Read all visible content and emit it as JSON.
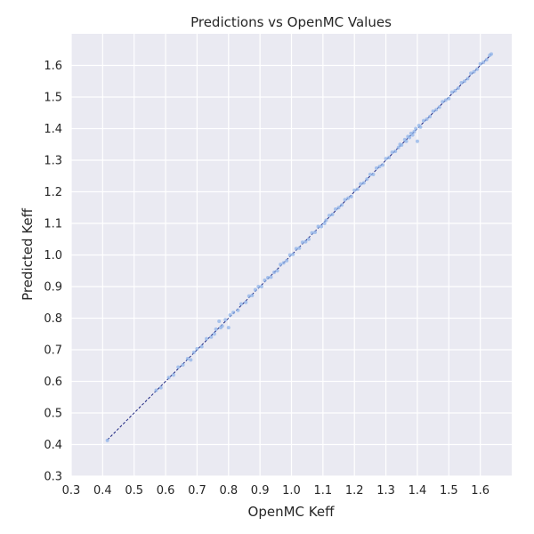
{
  "chart_data": {
    "type": "scatter",
    "title": "Predictions vs OpenMC Values",
    "xlabel": "OpenMC Keff",
    "ylabel": "Predicted Keff",
    "xlim": [
      0.3,
      1.7
    ],
    "ylim": [
      0.3,
      1.7
    ],
    "x_ticks": [
      "0.3",
      "0.4",
      "0.5",
      "0.6",
      "0.7",
      "0.8",
      "0.9",
      "1.0",
      "1.1",
      "1.2",
      "1.3",
      "1.4",
      "1.5",
      "1.6"
    ],
    "y_ticks": [
      "0.3",
      "0.4",
      "0.5",
      "0.6",
      "0.7",
      "0.8",
      "0.9",
      "1.0",
      "1.1",
      "1.2",
      "1.3",
      "1.4",
      "1.5",
      "1.6"
    ],
    "grid": true,
    "reference_line": {
      "style": "dashed",
      "color": "#1a237e",
      "from": [
        0.415,
        0.415
      ],
      "to": [
        1.635,
        1.635
      ]
    },
    "series": [
      {
        "color": "#8fb3e8",
        "points": [
          [
            0.415,
            0.413
          ],
          [
            0.57,
            0.572
          ],
          [
            0.585,
            0.58
          ],
          [
            0.61,
            0.612
          ],
          [
            0.625,
            0.62
          ],
          [
            0.64,
            0.645
          ],
          [
            0.655,
            0.652
          ],
          [
            0.67,
            0.672
          ],
          [
            0.68,
            0.668
          ],
          [
            0.69,
            0.692
          ],
          [
            0.7,
            0.703
          ],
          [
            0.715,
            0.71
          ],
          [
            0.73,
            0.735
          ],
          [
            0.745,
            0.74
          ],
          [
            0.755,
            0.75
          ],
          [
            0.76,
            0.765
          ],
          [
            0.77,
            0.79
          ],
          [
            0.775,
            0.77
          ],
          [
            0.78,
            0.775
          ],
          [
            0.79,
            0.795
          ],
          [
            0.8,
            0.77
          ],
          [
            0.805,
            0.81
          ],
          [
            0.815,
            0.818
          ],
          [
            0.83,
            0.825
          ],
          [
            0.84,
            0.845
          ],
          [
            0.855,
            0.85
          ],
          [
            0.865,
            0.87
          ],
          [
            0.875,
            0.872
          ],
          [
            0.885,
            0.89
          ],
          [
            0.895,
            0.9
          ],
          [
            0.905,
            0.9
          ],
          [
            0.915,
            0.92
          ],
          [
            0.925,
            0.928
          ],
          [
            0.935,
            0.93
          ],
          [
            0.945,
            0.945
          ],
          [
            0.955,
            0.95
          ],
          [
            0.965,
            0.97
          ],
          [
            0.975,
            0.975
          ],
          [
            0.985,
            0.982
          ],
          [
            0.995,
            1.0
          ],
          [
            1.005,
            1.002
          ],
          [
            1.015,
            1.02
          ],
          [
            1.025,
            1.022
          ],
          [
            1.035,
            1.04
          ],
          [
            1.045,
            1.042
          ],
          [
            1.055,
            1.05
          ],
          [
            1.065,
            1.07
          ],
          [
            1.075,
            1.072
          ],
          [
            1.085,
            1.09
          ],
          [
            1.095,
            1.09
          ],
          [
            1.105,
            1.1
          ],
          [
            1.11,
            1.11
          ],
          [
            1.12,
            1.125
          ],
          [
            1.13,
            1.128
          ],
          [
            1.14,
            1.145
          ],
          [
            1.15,
            1.15
          ],
          [
            1.16,
            1.158
          ],
          [
            1.17,
            1.175
          ],
          [
            1.18,
            1.18
          ],
          [
            1.19,
            1.185
          ],
          [
            1.2,
            1.205
          ],
          [
            1.21,
            1.208
          ],
          [
            1.22,
            1.225
          ],
          [
            1.23,
            1.228
          ],
          [
            1.24,
            1.24
          ],
          [
            1.25,
            1.255
          ],
          [
            1.26,
            1.255
          ],
          [
            1.27,
            1.275
          ],
          [
            1.28,
            1.28
          ],
          [
            1.29,
            1.285
          ],
          [
            1.3,
            1.305
          ],
          [
            1.31,
            1.308
          ],
          [
            1.32,
            1.325
          ],
          [
            1.33,
            1.328
          ],
          [
            1.34,
            1.34
          ],
          [
            1.345,
            1.35
          ],
          [
            1.35,
            1.348
          ],
          [
            1.36,
            1.365
          ],
          [
            1.365,
            1.36
          ],
          [
            1.37,
            1.375
          ],
          [
            1.375,
            1.372
          ],
          [
            1.38,
            1.385
          ],
          [
            1.385,
            1.38
          ],
          [
            1.39,
            1.39
          ],
          [
            1.395,
            1.4
          ],
          [
            1.4,
            1.36
          ],
          [
            1.405,
            1.41
          ],
          [
            1.41,
            1.405
          ],
          [
            1.42,
            1.425
          ],
          [
            1.43,
            1.43
          ],
          [
            1.44,
            1.438
          ],
          [
            1.45,
            1.455
          ],
          [
            1.46,
            1.46
          ],
          [
            1.47,
            1.468
          ],
          [
            1.48,
            1.485
          ],
          [
            1.49,
            1.49
          ],
          [
            1.5,
            1.495
          ],
          [
            1.51,
            1.515
          ],
          [
            1.52,
            1.52
          ],
          [
            1.53,
            1.528
          ],
          [
            1.54,
            1.545
          ],
          [
            1.55,
            1.55
          ],
          [
            1.56,
            1.558
          ],
          [
            1.57,
            1.575
          ],
          [
            1.58,
            1.58
          ],
          [
            1.59,
            1.588
          ],
          [
            1.6,
            1.605
          ],
          [
            1.61,
            1.61
          ],
          [
            1.62,
            1.618
          ],
          [
            1.63,
            1.632
          ],
          [
            1.635,
            1.636
          ]
        ]
      }
    ]
  },
  "colors": {
    "background": "#ffffff",
    "plot_area": "#eaeaf2",
    "grid": "#ffffff"
  }
}
